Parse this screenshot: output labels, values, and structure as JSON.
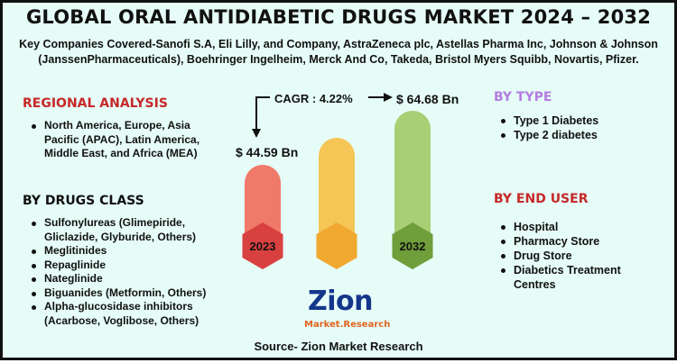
{
  "title": "GLOBAL ORAL ANTIDIABETIC DRUGS MARKET 2024 – 2032",
  "companies": "Key Companies Covered-Sanofi S.A, Eli Lilly, and Company, AstraZeneca plc, Astellas Pharma Inc, Johnson & Johnson (JanssenPharmaceuticals), Boehringer Ingelheim, Merck And Co, Takeda, Bristol Myers Squibb, Novartis, Pfizer.",
  "regional": {
    "title": "REGIONAL ANALYSIS",
    "items": [
      "North America, Europe, Asia Pacific (APAC), Latin America, Middle East, and Africa (MEA)"
    ]
  },
  "drugs_class": {
    "title": "BY DRUGS CLASS",
    "items": [
      "Sulfonylureas (Glimepiride, Gliclazide, Glyburide, Others)",
      "Meglitinides",
      "Repaglinide",
      "Nateglinide",
      "Biguanides (Metformin, Others)",
      "Alpha-glucosidase inhibitors (Acarbose, Voglibose, Others)"
    ]
  },
  "by_type": {
    "title": "BY TYPE",
    "items": [
      "Type 1 Diabetes",
      "Type 2 diabetes"
    ]
  },
  "end_user": {
    "title": "BY END USER",
    "items": [
      "Hospital",
      "Pharmacy Store",
      "Drug Store",
      "Diabetics Treatment Centres"
    ]
  },
  "chart_data": {
    "type": "bar",
    "categories": [
      "2023",
      "",
      "2032"
    ],
    "values": [
      44.59,
      null,
      64.68
    ],
    "value_labels": [
      "$ 44.59  Bn",
      "",
      "$ 64.68 Bn"
    ],
    "bar_colors": [
      "#f07a6a",
      "#f5c555",
      "#a8cf73"
    ],
    "base_colors": [
      "#d94040",
      "#f0a830",
      "#6f9e3a"
    ],
    "cagr_label": "CAGR : 4.22%",
    "grid": false
  },
  "logo": {
    "main": "Zion",
    "sub": "Market.Research"
  },
  "source": "Source- Zion Market Research"
}
